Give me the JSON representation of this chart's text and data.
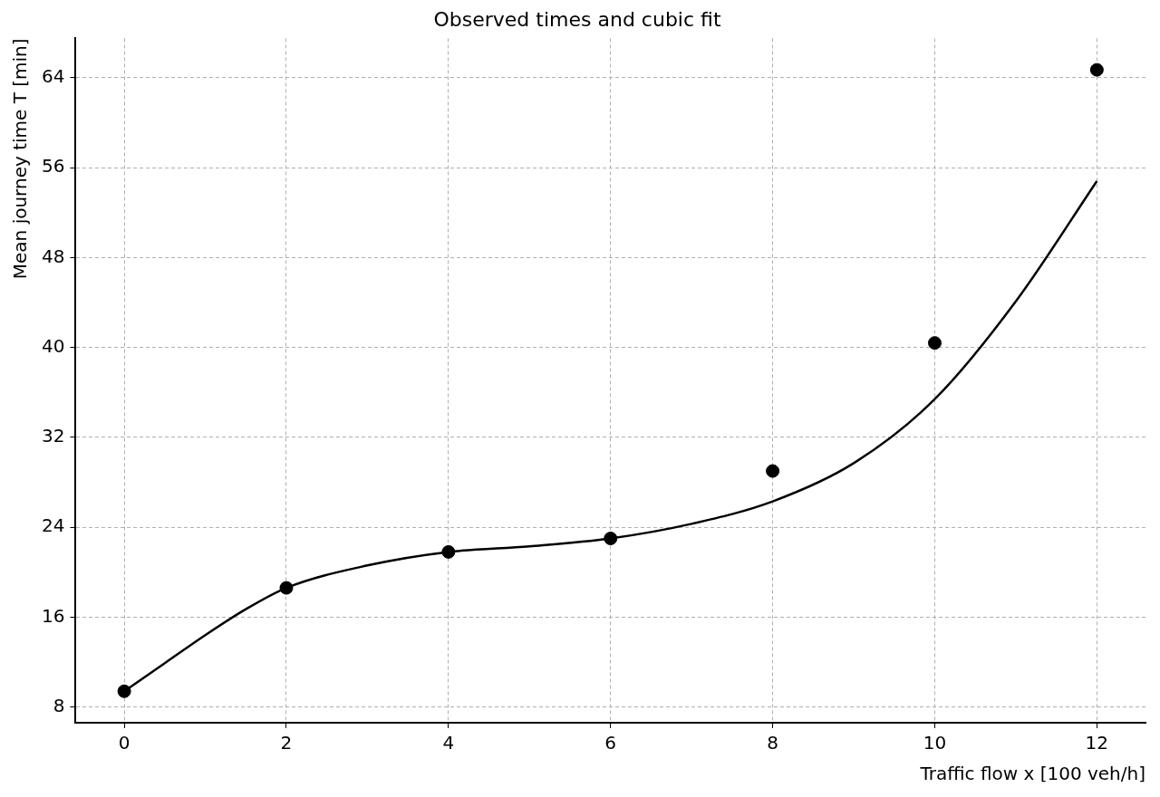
{
  "chart_data": {
    "type": "scatter",
    "title": "Observed times and cubic fit",
    "xlabel": "Traffic flow x [100 veh/h]",
    "ylabel": "Mean journey time T [min]",
    "xlim": [
      -0.6,
      12.6
    ],
    "xticks": [
      0,
      2,
      4,
      6,
      8,
      10,
      12
    ],
    "ylim": [
      6.6,
      67.5
    ],
    "yticks": [
      8,
      16,
      24,
      32,
      40,
      48,
      56,
      64
    ],
    "grid": true,
    "legend": false,
    "series": [
      {
        "type": "scatter",
        "color": "#000000",
        "marker": "circle",
        "x": [
          0,
          2,
          4,
          6,
          8,
          10,
          12
        ],
        "values": [
          9.4,
          18.6,
          21.8,
          23.0,
          29.0,
          40.4,
          64.7
        ]
      },
      {
        "type": "line",
        "color": "#000000",
        "marker": "none",
        "line_style": "solid",
        "x": [
          0,
          0.5,
          1,
          1.5,
          2,
          3,
          4,
          5,
          6,
          7,
          8,
          9,
          10,
          11,
          12
        ],
        "values": [
          9.4,
          11.9,
          14.4,
          16.7,
          18.6,
          20.6,
          21.8,
          22.3,
          23.0,
          24.3,
          26.3,
          29.7,
          35.4,
          44.1,
          54.8
        ]
      }
    ]
  }
}
